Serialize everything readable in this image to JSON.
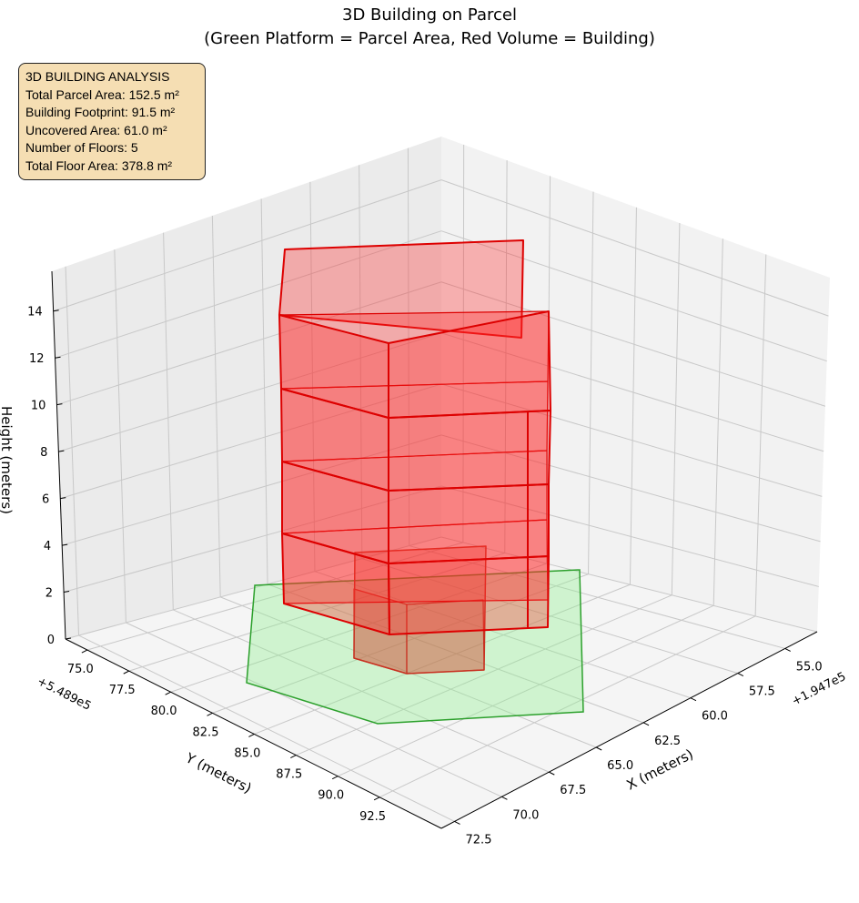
{
  "title_line1": "3D Building on Parcel",
  "title_line2": "(Green Platform = Parcel Area, Red Volume = Building)",
  "info_box": {
    "heading": "3D BUILDING ANALYSIS",
    "lines": [
      "Total Parcel Area: 152.5 m²",
      "Building Footprint: 91.5 m²",
      "Uncovered Area: 61.0 m²",
      "Number of Floors: 5",
      "Total Floor Area: 378.8 m²"
    ]
  },
  "chart_data": {
    "type": "3d-polygons",
    "title": "3D Building on Parcel (Green Platform = Parcel Area, Red Volume = Building)",
    "xlabel": "X (meters)",
    "ylabel": "Y (meters)",
    "zlabel": "Height (meters)",
    "x_offset": "+1.947e5",
    "y_offset": "+5.489e5",
    "x_ticks": [
      "55.0",
      "57.5",
      "60.0",
      "62.5",
      "65.0",
      "67.5",
      "70.0",
      "72.5"
    ],
    "x_tick_values": [
      55.0,
      57.5,
      60.0,
      62.5,
      65.0,
      67.5,
      70.0,
      72.5
    ],
    "y_ticks": [
      "75.0",
      "77.5",
      "80.0",
      "82.5",
      "85.0",
      "87.5",
      "90.0",
      "92.5"
    ],
    "y_tick_values": [
      75.0,
      77.5,
      80.0,
      82.5,
      85.0,
      87.5,
      90.0,
      92.5
    ],
    "z_ticks": [
      "0",
      "2",
      "4",
      "6",
      "8",
      "10",
      "12",
      "14"
    ],
    "z_tick_values": [
      0,
      2,
      4,
      6,
      8,
      10,
      12,
      14
    ],
    "xlim": [
      53.3,
      73.2
    ],
    "ylim": [
      73.7,
      96.2
    ],
    "zlim": [
      0,
      15.7
    ],
    "series": [
      {
        "name": "Parcel Area",
        "color": "#2ca02c",
        "fill": "#90ee90",
        "area_m2": 152.5,
        "height": 0
      },
      {
        "name": "Building",
        "color": "#ff0000",
        "fill": "#ff0000",
        "footprint_m2": 91.5,
        "floors": 5,
        "total_floor_area_m2": 378.8
      }
    ],
    "grid": true
  }
}
